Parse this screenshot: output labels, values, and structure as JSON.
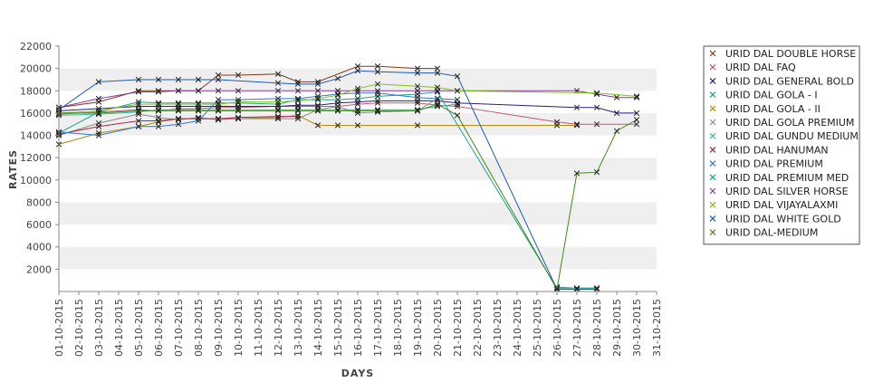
{
  "chart_data": {
    "type": "line",
    "title": "",
    "xlabel": "DAYS",
    "ylabel": "RATES",
    "ylim": [
      0,
      22000
    ],
    "yticks": [
      2000,
      4000,
      6000,
      8000,
      10000,
      12000,
      14000,
      16000,
      18000,
      20000,
      22000
    ],
    "y_tick_labels": [
      "2000",
      "4000",
      "6000",
      "8000",
      "10000",
      "12000",
      "14000",
      "16000",
      "18000",
      "20000",
      "22000"
    ],
    "x": [
      "01-10-2015",
      "02-10-2015",
      "03-10-2015",
      "04-10-2015",
      "05-10-2015",
      "06-10-2015",
      "07-10-2015",
      "08-10-2015",
      "09-10-2015",
      "10-10-2015",
      "11-10-2015",
      "12-10-2015",
      "13-10-2015",
      "14-10-2015",
      "15-10-2015",
      "16-10-2015",
      "17-10-2015",
      "18-10-2015",
      "19-10-2015",
      "20-10-2015",
      "21-10-2015",
      "22-10-2015",
      "23-10-2015",
      "24-10-2015",
      "25-10-2015",
      "26-10-2015",
      "27-10-2015",
      "28-10-2015",
      "29-10-2015",
      "30-10-2015",
      "31-10-2015"
    ],
    "grid": "alternating horizontal bands",
    "legend_position": "right",
    "series": [
      {
        "name": "URID DAL DOUBLE HORSE",
        "color": "#7a3b1e",
        "values": [
          16500,
          null,
          17000,
          null,
          18000,
          18000,
          18000,
          18000,
          19400,
          19400,
          null,
          19500,
          18800,
          18800,
          null,
          20200,
          20200,
          null,
          20000,
          20000,
          null,
          null,
          null,
          null,
          null,
          null,
          null,
          null,
          null,
          null,
          null
        ]
      },
      {
        "name": "URID DAL FAQ",
        "color": "#c25a6a",
        "values": [
          15900,
          null,
          16100,
          null,
          16300,
          16200,
          16400,
          16400,
          16500,
          16500,
          null,
          16600,
          16600,
          16600,
          16600,
          16800,
          16900,
          null,
          16900,
          16700,
          16600,
          null,
          null,
          null,
          null,
          15200,
          15000,
          15000,
          null,
          15000,
          null
        ]
      },
      {
        "name": "URID DAL GENERAL BOLD",
        "color": "#2a1e7a",
        "values": [
          16200,
          null,
          16400,
          null,
          16600,
          16600,
          16600,
          16600,
          16600,
          16600,
          null,
          16600,
          16700,
          16700,
          16900,
          17000,
          17100,
          null,
          17100,
          17100,
          16900,
          null,
          null,
          null,
          null,
          null,
          16500,
          16500,
          16000,
          16000,
          null
        ]
      },
      {
        "name": "URID DAL GOLA - I",
        "color": "#1e9e8e",
        "values": [
          14200,
          null,
          16100,
          null,
          17000,
          16900,
          16900,
          16900,
          16900,
          16900,
          null,
          16800,
          17200,
          17200,
          17200,
          17300,
          17500,
          null,
          17700,
          17900,
          null,
          null,
          null,
          null,
          null,
          300,
          300,
          300,
          null,
          null,
          null
        ]
      },
      {
        "name": "URID DAL GOLA - II",
        "color": "#b08a14",
        "values": [
          13200,
          null,
          14200,
          null,
          14800,
          15200,
          15500,
          15500,
          15500,
          15500,
          null,
          15600,
          15800,
          14900,
          14900,
          14900,
          null,
          null,
          14900,
          null,
          null,
          null,
          null,
          null,
          null,
          14900,
          14900,
          null,
          null,
          null,
          null
        ]
      },
      {
        "name": "URID DAL GOLA PREMIUM",
        "color": "#8a8a8a",
        "values": [
          14000,
          null,
          15100,
          null,
          15900,
          15600,
          15400,
          15600,
          15400,
          15500,
          null,
          15500,
          15500,
          16300,
          16600,
          16000,
          16100,
          null,
          16200,
          17300,
          null,
          null,
          null,
          null,
          null,
          null,
          null,
          null,
          null,
          null,
          null
        ]
      },
      {
        "name": "URID DAL GUNDU MEDIUM",
        "color": "#3ab4a4",
        "values": [
          15800,
          null,
          15900,
          null,
          16100,
          16300,
          16300,
          16300,
          16300,
          16300,
          null,
          16300,
          16300,
          16300,
          16300,
          16300,
          16300,
          null,
          16300,
          16600,
          16800,
          null,
          null,
          null,
          null,
          null,
          null,
          null,
          null,
          null,
          null
        ]
      },
      {
        "name": "URID DAL HANUMAN",
        "color": "#a0284a",
        "values": [
          14100,
          null,
          14800,
          null,
          15300,
          15300,
          15500,
          15500,
          15500,
          15600,
          null,
          15700,
          15700,
          null,
          null,
          null,
          null,
          null,
          null,
          null,
          null,
          null,
          null,
          null,
          null,
          null,
          null,
          null,
          null,
          null,
          null
        ]
      },
      {
        "name": "URID DAL PREMIUM",
        "color": "#2a7ad2",
        "values": [
          14300,
          null,
          14000,
          null,
          14800,
          14800,
          15000,
          15300,
          17200,
          17200,
          null,
          17300,
          17300,
          17500,
          17700,
          17800,
          17800,
          null,
          17400,
          17300,
          17200,
          null,
          null,
          null,
          null,
          null,
          null,
          null,
          null,
          null,
          null
        ]
      },
      {
        "name": "URID DAL PREMIUM MED",
        "color": "#14a2a2",
        "values": [
          null,
          null,
          null,
          null,
          null,
          null,
          null,
          null,
          null,
          null,
          null,
          null,
          null,
          null,
          null,
          null,
          null,
          null,
          null,
          null,
          null,
          null,
          null,
          null,
          null,
          400,
          300,
          300,
          null,
          null,
          null
        ]
      },
      {
        "name": "URID DAL SILVER HORSE",
        "color": "#8a3a9a",
        "values": [
          16500,
          null,
          17300,
          null,
          17900,
          17900,
          18000,
          18000,
          18000,
          18000,
          null,
          18000,
          18000,
          18000,
          18000,
          18000,
          18000,
          null,
          18000,
          18000,
          18000,
          null,
          null,
          null,
          null,
          null,
          18000,
          17700,
          17400,
          17400,
          null
        ]
      },
      {
        "name": "URID DAL VIJAYALAXMI",
        "color": "#7ac21e",
        "values": [
          16000,
          null,
          16200,
          null,
          16800,
          16800,
          16800,
          16800,
          16800,
          17000,
          null,
          17000,
          17100,
          17300,
          17600,
          18200,
          18600,
          null,
          18400,
          18300,
          18000,
          null,
          null,
          null,
          null,
          null,
          null,
          17800,
          null,
          17500,
          null
        ]
      },
      {
        "name": "URID DAL WHITE GOLD",
        "color": "#1e5ab4",
        "values": [
          16300,
          null,
          18800,
          null,
          19000,
          19000,
          19000,
          19000,
          19000,
          null,
          null,
          18700,
          18600,
          18600,
          19100,
          19800,
          19700,
          null,
          19600,
          19600,
          19300,
          null,
          null,
          null,
          null,
          200,
          200,
          200,
          null,
          null,
          null
        ]
      },
      {
        "name": "URID DAL-MEDIUM",
        "color": "#3e8a1e",
        "values": [
          16000,
          null,
          16000,
          null,
          16200,
          16200,
          16200,
          16200,
          16200,
          16200,
          null,
          16200,
          16200,
          16200,
          16200,
          16200,
          16200,
          null,
          16200,
          16800,
          15800,
          null,
          null,
          null,
          null,
          200,
          10600,
          10700,
          14400,
          15400,
          null
        ]
      }
    ]
  }
}
